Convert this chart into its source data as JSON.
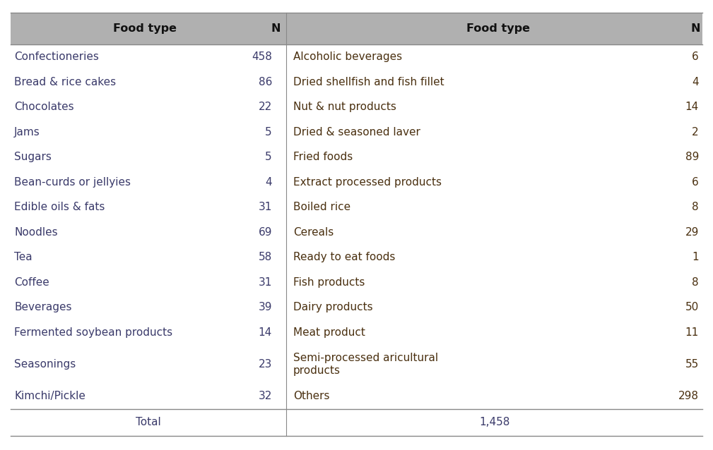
{
  "header_bg": "#b0b0b0",
  "header_text_color": "#111111",
  "left_data_color": "#3a3a6a",
  "right_data_color": "#4a3010",
  "total_row_color": "#3a3a6a",
  "table_bg": "#ffffff",
  "header_font_size": 11.5,
  "data_font_size": 11,
  "total_font_size": 11,
  "left_rows": [
    [
      "Confectioneries",
      "458"
    ],
    [
      "Bread & rice cakes",
      "86"
    ],
    [
      "Chocolates",
      "22"
    ],
    [
      "Jams",
      "5"
    ],
    [
      "Sugars",
      "5"
    ],
    [
      "Bean-curds or jellyies",
      "4"
    ],
    [
      "Edible oils & fats",
      "31"
    ],
    [
      "Noodles",
      "69"
    ],
    [
      "Tea",
      "58"
    ],
    [
      "Coffee",
      "31"
    ],
    [
      "Beverages",
      "39"
    ],
    [
      "Fermented soybean products",
      "14"
    ],
    [
      "Seasonings",
      "23"
    ],
    [
      "Kimchi/Pickle",
      "32"
    ]
  ],
  "right_rows": [
    [
      "Alcoholic beverages",
      "6"
    ],
    [
      "Dried shellfish and fish fillet",
      "4"
    ],
    [
      "Nut & nut products",
      "14"
    ],
    [
      "Dried & seasoned laver",
      "2"
    ],
    [
      "Fried foods",
      "89"
    ],
    [
      "Extract processed products",
      "6"
    ],
    [
      "Boiled rice",
      "8"
    ],
    [
      "Cereals",
      "29"
    ],
    [
      "Ready to eat foods",
      "1"
    ],
    [
      "Fish products",
      "8"
    ],
    [
      "Dairy products",
      "50"
    ],
    [
      "Meat product",
      "11"
    ],
    [
      "Semi-processed aricultural\nproducts",
      "55"
    ],
    [
      "Others",
      "298"
    ]
  ],
  "total_label": "Total",
  "total_value": "1,458",
  "col_headers": [
    "Food type",
    "N",
    "Food type",
    "N"
  ],
  "figsize": [
    10.09,
    6.38
  ],
  "dpi": 100
}
